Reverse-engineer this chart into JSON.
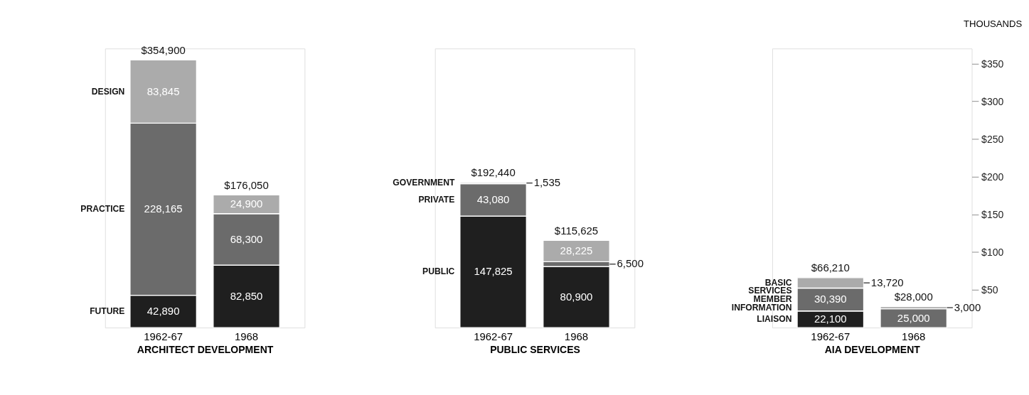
{
  "chart_data": [
    {
      "type": "bar",
      "stacked": true,
      "xlabel": "ARCHITECT DEVELOPMENT",
      "categories": [
        "1962-67",
        "1968"
      ],
      "ylim": [
        0,
        370000
      ],
      "tick_labels": "x",
      "totals": [
        "$354,900",
        "$176,050"
      ],
      "series": [
        {
          "name": "FUTURE",
          "color": "#1f1f1f",
          "values": [
            42890,
            82850
          ],
          "value_labels": [
            "42,890",
            "82,850"
          ]
        },
        {
          "name": "PRACTICE",
          "color": "#6b6b6b",
          "values": [
            228165,
            68300
          ],
          "value_labels": [
            "228,165",
            "68,300"
          ]
        },
        {
          "name": "DESIGN",
          "color": "#ababab",
          "values": [
            83845,
            24900
          ],
          "value_labels": [
            "83,845",
            "24,900"
          ]
        }
      ]
    },
    {
      "type": "bar",
      "stacked": true,
      "xlabel": "PUBLIC SERVICES",
      "categories": [
        "1962-67",
        "1968"
      ],
      "ylim": [
        0,
        370000
      ],
      "tick_labels": "x",
      "totals": [
        "$192,440",
        "$115,625"
      ],
      "series": [
        {
          "name": "PUBLIC",
          "color": "#1f1f1f",
          "values": [
            147825,
            80900
          ],
          "value_labels": [
            "147,825",
            "80,900"
          ]
        },
        {
          "name": "PRIVATE",
          "color": "#6b6b6b",
          "values": [
            43080,
            6500
          ],
          "value_labels": [
            "43,080",
            "6,500"
          ]
        },
        {
          "name": "GOVERNMENT",
          "color": "#ababab",
          "values": [
            1535,
            28225
          ],
          "value_labels": [
            "1,535",
            "28,225"
          ]
        }
      ]
    },
    {
      "type": "bar",
      "stacked": true,
      "xlabel": "AIA DEVELOPMENT",
      "y2label": "THOUSANDS",
      "categories": [
        "1962-67",
        "1968"
      ],
      "ylim": [
        0,
        370000
      ],
      "tick_labels": "x",
      "y2lim": [
        0,
        370
      ],
      "y2ticks": [
        {
          "value": 50,
          "label": "$50"
        },
        {
          "value": 100,
          "label": "$100"
        },
        {
          "value": 150,
          "label": "$150"
        },
        {
          "value": 200,
          "label": "$200"
        },
        {
          "value": 250,
          "label": "$250"
        },
        {
          "value": 300,
          "label": "$300"
        },
        {
          "value": 350,
          "label": "$350"
        }
      ],
      "totals": [
        "$66,210",
        "$28,000"
      ],
      "series": [
        {
          "name": "LIAISON",
          "color": "#1f1f1f",
          "values": [
            22100,
            null
          ],
          "value_labels": [
            "22,100",
            null
          ]
        },
        {
          "name": "MEMBER INFORMATION",
          "color": "#6b6b6b",
          "values": [
            30390,
            25000
          ],
          "value_labels": [
            "30,390",
            "25,000"
          ]
        },
        {
          "name": "BASIC SERVICES",
          "color": "#ababab",
          "values": [
            13720,
            3000
          ],
          "value_labels": [
            "13,720",
            "3,000"
          ]
        }
      ]
    }
  ]
}
